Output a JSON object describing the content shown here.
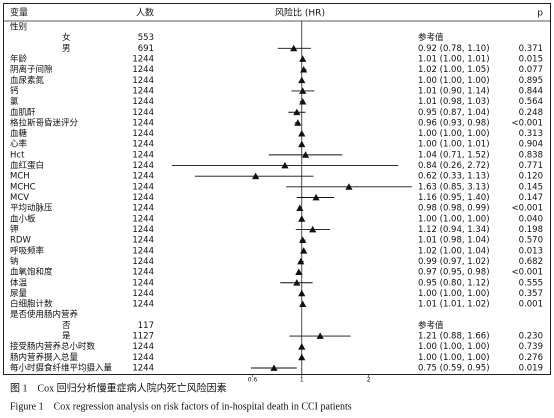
{
  "chart_data": {
    "type": "forest",
    "headers": {
      "variable": "变量",
      "n": "人数",
      "hr": "风险比 (HR)",
      "p": "p"
    },
    "xscale": "log",
    "xlim": [
      0.25,
      3.2
    ],
    "xticks": [
      0.6,
      1,
      2
    ],
    "reference_line": 1,
    "color": "#111111",
    "rows": [
      {
        "label": "性别",
        "levels": [
          {
            "label": "女",
            "n": 553,
            "ci_label": "参考值"
          },
          {
            "label": "男",
            "n": 691,
            "hr": 0.92,
            "lower": 0.78,
            "upper": 1.1,
            "ci_label": "0.92 (0.78, 1.10)",
            "p": "0.371"
          }
        ]
      },
      {
        "label": "年龄",
        "n": 1244,
        "hr": 1.01,
        "lower": 1.0,
        "upper": 1.01,
        "ci_label": "1.01 (1.00, 1.01)",
        "p": "0.015"
      },
      {
        "label": "阴离子间隙",
        "n": 1244,
        "hr": 1.02,
        "lower": 1.0,
        "upper": 1.05,
        "ci_label": "1.02 (1.00, 1.05)",
        "p": "0.077"
      },
      {
        "label": "血尿素氮",
        "n": 1244,
        "hr": 1.0,
        "lower": 1.0,
        "upper": 1.0,
        "ci_label": "1.00 (1.00, 1.00)",
        "p": "0.895"
      },
      {
        "label": "钙",
        "n": 1244,
        "hr": 1.01,
        "lower": 0.9,
        "upper": 1.14,
        "ci_label": "1.01 (0.90, 1.14)",
        "p": "0.844"
      },
      {
        "label": "氯",
        "n": 1244,
        "hr": 1.01,
        "lower": 0.98,
        "upper": 1.03,
        "ci_label": "1.01 (0.98, 1.03)",
        "p": "0.564"
      },
      {
        "label": "血肌酐",
        "n": 1244,
        "hr": 0.95,
        "lower": 0.87,
        "upper": 1.04,
        "ci_label": "0.95 (0.87, 1.04)",
        "p": "0.248"
      },
      {
        "label": "格拉斯哥昏迷评分",
        "n": 1244,
        "hr": 0.96,
        "lower": 0.93,
        "upper": 0.98,
        "ci_label": "0.96 (0.93, 0.98)",
        "p": "<0.001"
      },
      {
        "label": "血糖",
        "n": 1244,
        "hr": 1.0,
        "lower": 1.0,
        "upper": 1.0,
        "ci_label": "1.00 (1.00, 1.00)",
        "p": "0.313"
      },
      {
        "label": "心率",
        "n": 1244,
        "hr": 1.0,
        "lower": 1.0,
        "upper": 1.01,
        "ci_label": "1.00 (1.00, 1.01)",
        "p": "0.904"
      },
      {
        "label": "Hct",
        "n": 1244,
        "hr": 1.04,
        "lower": 0.71,
        "upper": 1.52,
        "ci_label": "1.04 (0.71, 1.52)",
        "p": "0.838"
      },
      {
        "label": "血红蛋白",
        "n": 1244,
        "hr": 0.84,
        "lower": 0.26,
        "upper": 2.72,
        "ci_label": "0.84 (0.26, 2.72)",
        "p": "0.771"
      },
      {
        "label": "MCH",
        "n": 1244,
        "hr": 0.62,
        "lower": 0.33,
        "upper": 1.13,
        "ci_label": "0.62 (0.33, 1.13)",
        "p": "0.120"
      },
      {
        "label": "MCHC",
        "n": 1244,
        "hr": 1.63,
        "lower": 0.85,
        "upper": 3.13,
        "ci_label": "1.63 (0.85, 3.13)",
        "p": "0.145"
      },
      {
        "label": "MCV",
        "n": 1244,
        "hr": 1.16,
        "lower": 0.95,
        "upper": 1.4,
        "ci_label": "1.16 (0.95, 1.40)",
        "p": "0.147"
      },
      {
        "label": "平均动脉压",
        "n": 1244,
        "hr": 0.98,
        "lower": 0.98,
        "upper": 0.99,
        "ci_label": "0.98 (0.98, 0.99)",
        "p": "<0.001"
      },
      {
        "label": "血小板",
        "n": 1244,
        "hr": 1.0,
        "lower": 1.0,
        "upper": 1.0,
        "ci_label": "1.00 (1.00, 1.00)",
        "p": "0.040"
      },
      {
        "label": "钾",
        "n": 1244,
        "hr": 1.12,
        "lower": 0.94,
        "upper": 1.34,
        "ci_label": "1.12 (0.94, 1.34)",
        "p": "0.198"
      },
      {
        "label": "RDW",
        "n": 1244,
        "hr": 1.01,
        "lower": 0.98,
        "upper": 1.04,
        "ci_label": "1.01 (0.98, 1.04)",
        "p": "0.570"
      },
      {
        "label": "呼吸频率",
        "n": 1244,
        "hr": 1.02,
        "lower": 1.0,
        "upper": 1.04,
        "ci_label": "1.02 (1.00, 1.04)",
        "p": "0.013"
      },
      {
        "label": "钠",
        "n": 1244,
        "hr": 0.99,
        "lower": 0.97,
        "upper": 1.02,
        "ci_label": "0.99 (0.97, 1.02)",
        "p": "0.682"
      },
      {
        "label": "血氧饱和度",
        "n": 1244,
        "hr": 0.97,
        "lower": 0.95,
        "upper": 0.98,
        "ci_label": "0.97 (0.95, 0.98)",
        "p": "<0.001"
      },
      {
        "label": "体温",
        "n": 1244,
        "hr": 0.95,
        "lower": 0.8,
        "upper": 1.12,
        "ci_label": "0.95 (0.80, 1.12)",
        "p": "0.555"
      },
      {
        "label": "尿量",
        "n": 1244,
        "hr": 1.0,
        "lower": 1.0,
        "upper": 1.0,
        "ci_label": "1.00 (1.00, 1.00)",
        "p": "0.357"
      },
      {
        "label": "白细胞计数",
        "n": 1244,
        "hr": 1.01,
        "lower": 1.01,
        "upper": 1.02,
        "ci_label": "1.01 (1.01, 1.02)",
        "p": "0.001"
      },
      {
        "label": "是否使用肠内营养",
        "levels": [
          {
            "label": "否",
            "n": 117,
            "ci_label": "参考值"
          },
          {
            "label": "是",
            "n": 1127,
            "hr": 1.21,
            "lower": 0.88,
            "upper": 1.66,
            "ci_label": "1.21 (0.88, 1.66)",
            "p": "0.230"
          }
        ]
      },
      {
        "label": "接受肠内营养总小时数",
        "n": 1244,
        "hr": 1.0,
        "lower": 1.0,
        "upper": 1.0,
        "ci_label": "1.00 (1.00, 1.00)",
        "p": "0.739"
      },
      {
        "label": "肠内营养摄入总量",
        "n": 1244,
        "hr": 1.0,
        "lower": 1.0,
        "upper": 1.0,
        "ci_label": "1.00 (1.00, 1.00)",
        "p": "0.276"
      },
      {
        "label": "每小时摄食纤维平均摄入量",
        "n": 1244,
        "hr": 0.75,
        "lower": 0.59,
        "upper": 0.95,
        "ci_label": "0.75 (0.59, 0.95)",
        "p": "0.019"
      }
    ]
  },
  "caption": {
    "zh": "图 1　Cox 回归分析慢重症病人院内死亡风险因素",
    "en": "Figure 1　Cox regression analysis on risk factors of in-hospital death in CCI patients"
  }
}
